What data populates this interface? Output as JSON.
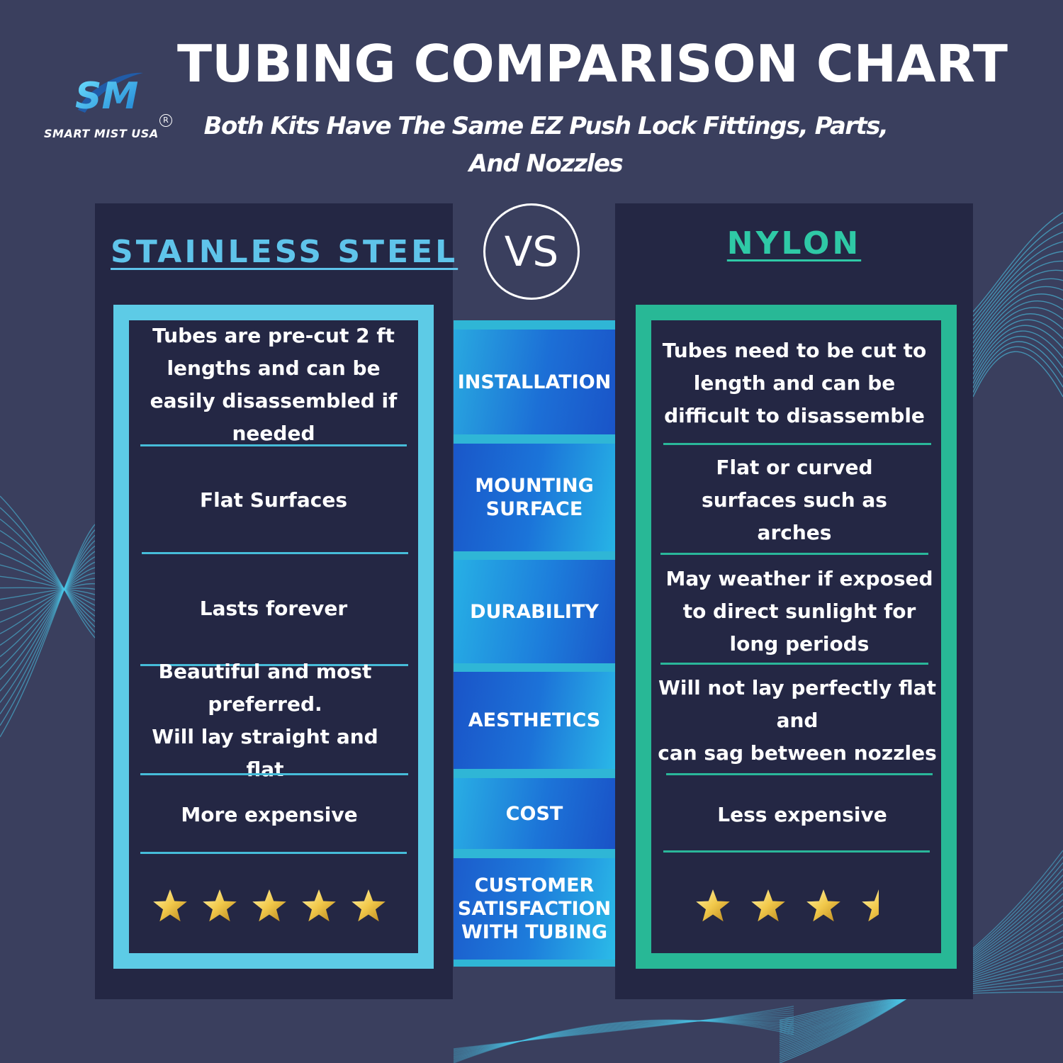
{
  "brand": {
    "logo_letters": "SM",
    "name": "SMART MIST USA",
    "registered": "R"
  },
  "header": {
    "title": "TUBING COMPARISON CHART",
    "subtitle_line1": "Both Kits Have The Same EZ Push Lock Fittings, Parts,",
    "subtitle_line2": "And Nozzles"
  },
  "vs_label": "VS",
  "left": {
    "heading": "STAINLESS STEEL",
    "accent": "#5dcbe6",
    "cells": [
      "Tubes are pre-cut 2 ft lengths and can be easily disassembled if needed",
      "Flat Surfaces",
      "Lasts forever",
      "Beautiful and most preferred.\nWill lay straight and flat",
      "More expensive"
    ],
    "rating": 5
  },
  "right": {
    "heading": "NYLON",
    "accent": "#28b896",
    "cells": [
      "Tubes need to be cut to length and can be difficult to disassemble",
      "Flat or curved surfaces such as arches",
      "May weather if exposed to direct sunlight for long periods",
      "Will not lay perfectly flat and\ncan sag between nozzles",
      "Less expensive"
    ],
    "rating": 3.5
  },
  "categories": [
    "INSTALLATION",
    "MOUNTING SURFACE",
    "DURABILITY",
    "AESTHETICS",
    "COST",
    "CUSTOMER SATISFACTION WITH TUBING"
  ],
  "colors": {
    "background": "#3a3f5e",
    "panel": "#242744",
    "star": "#f1c84a"
  }
}
